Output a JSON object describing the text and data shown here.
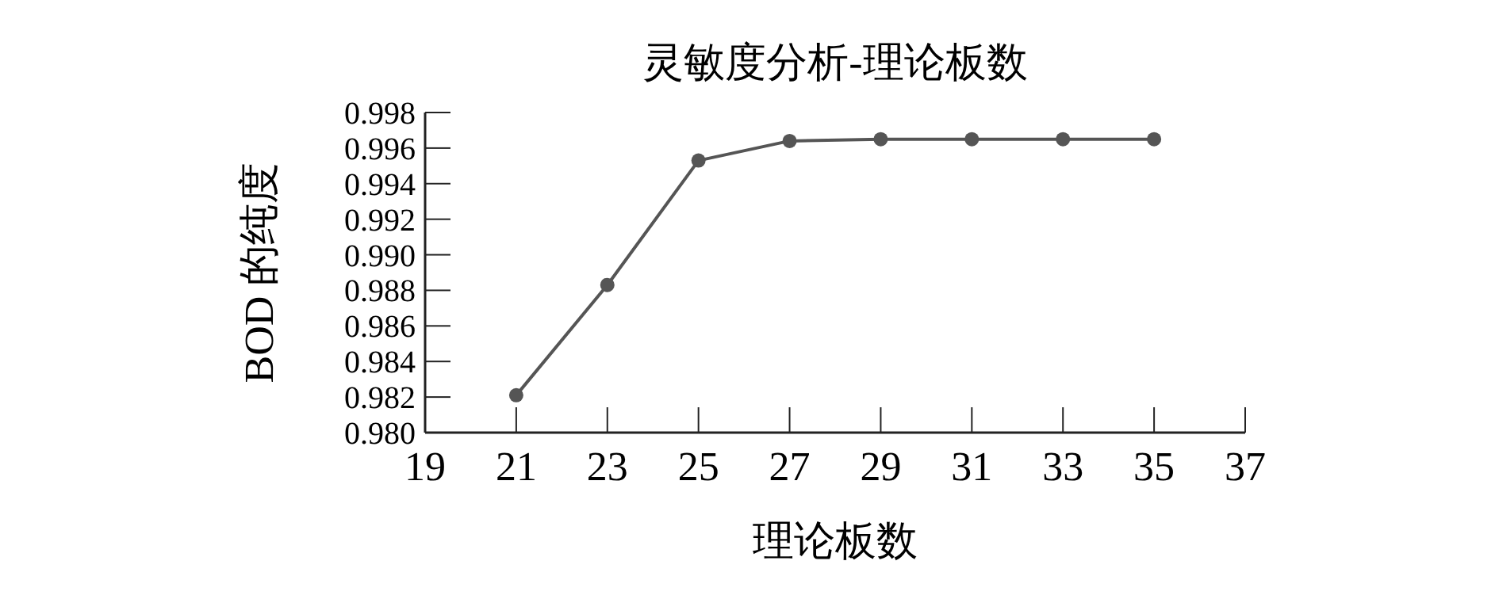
{
  "chart_data": {
    "type": "line",
    "title": "灵敏度分析-理论板数",
    "xlabel": "理论板数",
    "ylabel": "BOD 的纯度",
    "x": [
      21,
      23,
      25,
      27,
      29,
      31,
      33,
      35
    ],
    "series": [
      {
        "color": "#555555",
        "values": [
          0.9821,
          0.9883,
          0.9953,
          0.9964,
          0.9965,
          0.9965,
          0.9965,
          0.9965
        ]
      }
    ],
    "xlim": [
      19,
      37
    ],
    "xticks": [
      19,
      21,
      23,
      25,
      27,
      29,
      31,
      33,
      35,
      37
    ],
    "ylim": [
      0.98,
      0.998
    ],
    "yticks": [
      {
        "value": 0.98,
        "label": "0.980"
      },
      0.982,
      0.984,
      0.986,
      0.988,
      {
        "value": 0.99,
        "label": "0.990"
      },
      0.992,
      0.994,
      0.996,
      0.998
    ],
    "grid": false,
    "marker": "circle",
    "line_style": "solid"
  }
}
